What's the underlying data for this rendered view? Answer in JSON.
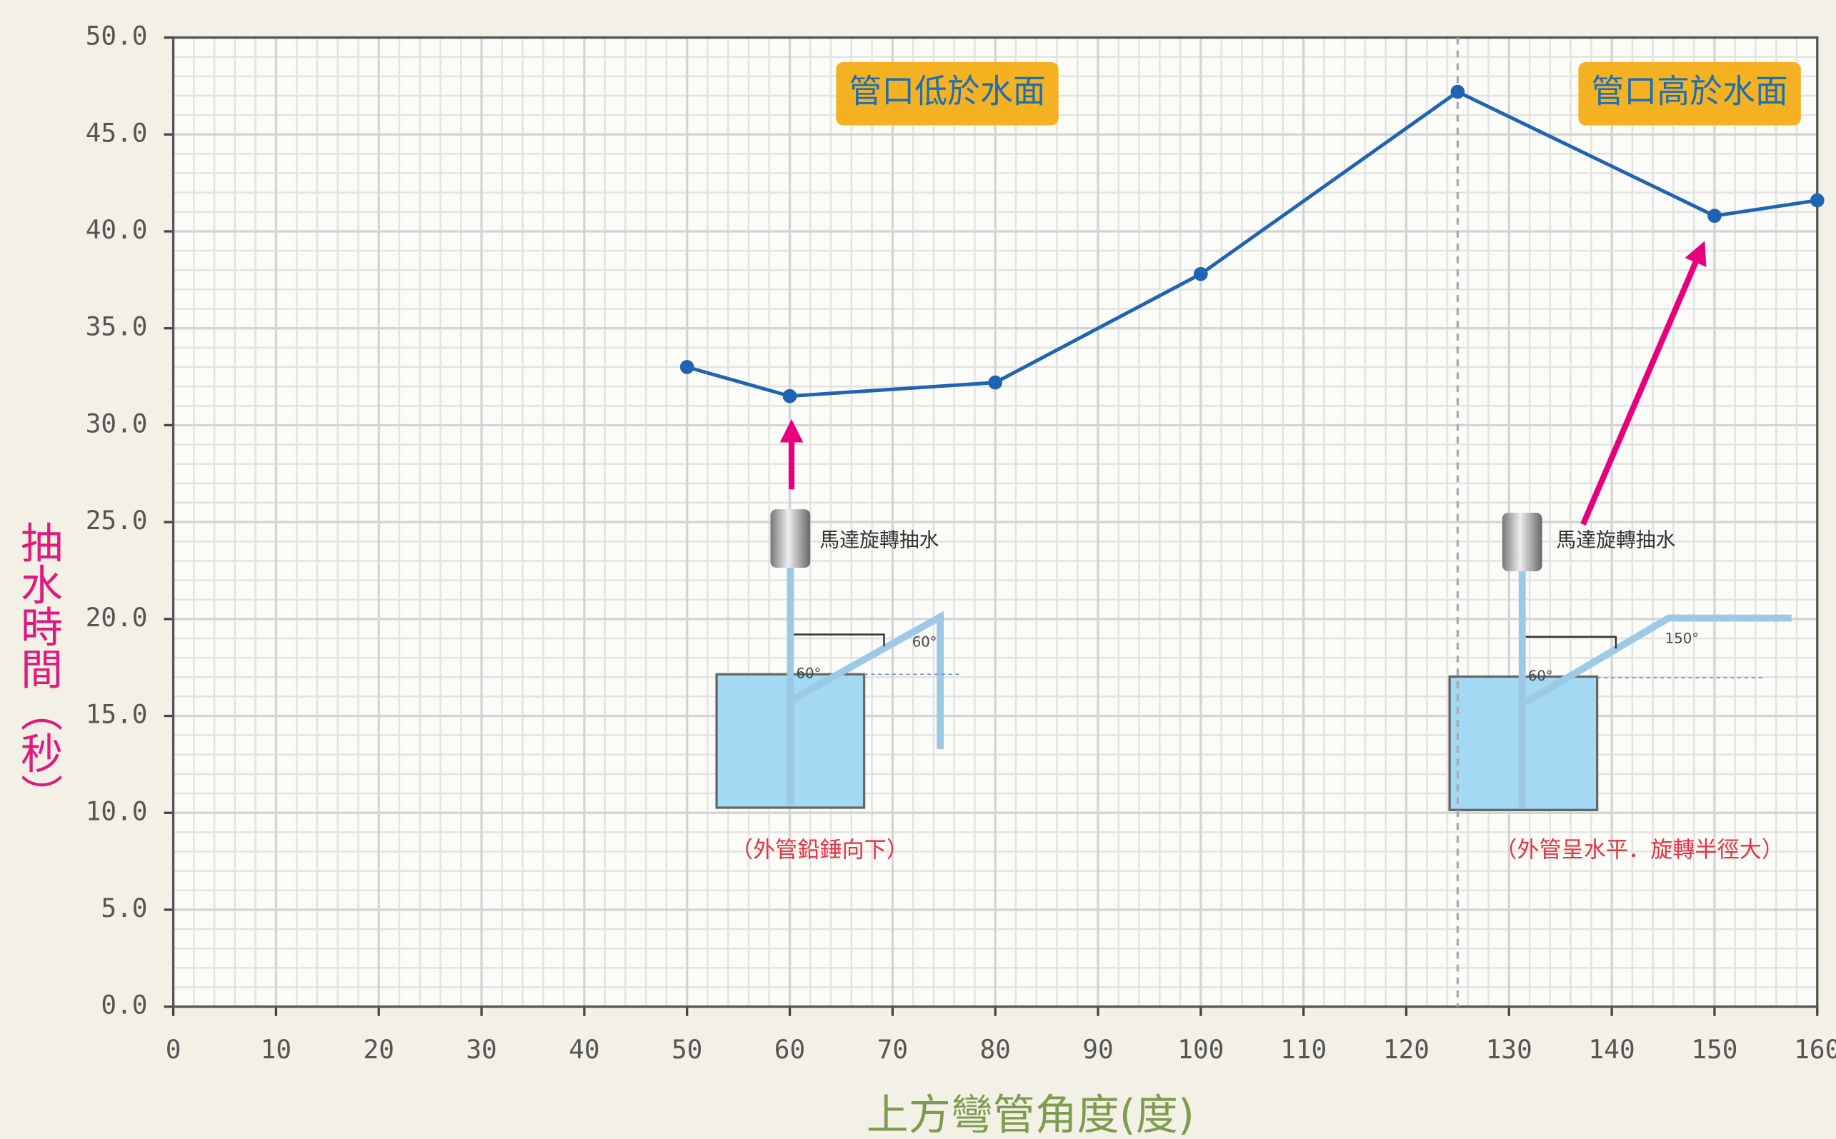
{
  "chart_data": {
    "type": "line",
    "x_label": "上方彎管角度(度)",
    "y_label": "抽水時間（秒）",
    "x": [
      50,
      60,
      80,
      100,
      125,
      150,
      160
    ],
    "series": [
      {
        "name": "抽水時間",
        "color": "#1f63b3",
        "values": [
          33.0,
          31.5,
          32.2,
          37.8,
          47.2,
          40.8,
          41.6
        ]
      }
    ],
    "xlim": [
      0,
      160
    ],
    "xticks": [
      0,
      10,
      20,
      30,
      40,
      50,
      60,
      70,
      80,
      90,
      100,
      110,
      120,
      130,
      140,
      150,
      160
    ],
    "ylim": [
      0,
      50
    ],
    "yticks": [
      {
        "value": 0,
        "label": "0.0"
      },
      {
        "value": 5,
        "label": "5.0"
      },
      {
        "value": 10,
        "label": "10.0"
      },
      {
        "value": 15,
        "label": "15.0"
      },
      {
        "value": 20,
        "label": "20.0"
      },
      {
        "value": 25,
        "label": "25.0"
      },
      {
        "value": 30,
        "label": "30.0"
      },
      {
        "value": 35,
        "label": "35.0"
      },
      {
        "value": 40,
        "label": "40.0"
      },
      {
        "value": 45,
        "label": "45.0"
      },
      {
        "value": 50,
        "label": "50.0"
      }
    ],
    "grid": true,
    "divider_x": 125,
    "region_labels": [
      "管口低於水面",
      "管口高於水面"
    ],
    "diagram_left": {
      "motor": "馬達旋轉抽水",
      "angle_a": "60°",
      "angle_b": "60°",
      "caption": "（外管鉛錘向下）"
    },
    "diagram_right": {
      "motor": "馬達旋轉抽水",
      "angle_a": "60°",
      "angle_b": "150°",
      "caption": "（外管呈水平．旋轉半徑大）"
    }
  }
}
